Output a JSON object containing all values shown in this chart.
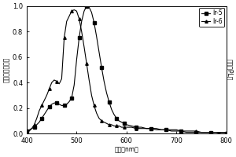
{
  "title": "",
  "xlabel": "波长（nm）",
  "ylabel_left": "归一化吸收强度",
  "ylabel_right": "归一化PL演",
  "xlim": [
    400,
    800
  ],
  "ylim": [
    0.0,
    1.0
  ],
  "xticks": [
    400,
    500,
    600,
    700,
    800
  ],
  "yticks": [
    0.0,
    0.2,
    0.4,
    0.6,
    0.8,
    1.0
  ],
  "legend": [
    "Ir-5",
    "Ir-6"
  ],
  "background_color": "#ffffff",
  "ir5_x": [
    400,
    405,
    410,
    415,
    420,
    425,
    430,
    435,
    440,
    445,
    450,
    455,
    460,
    465,
    470,
    475,
    480,
    485,
    490,
    495,
    500,
    505,
    510,
    515,
    520,
    525,
    530,
    535,
    540,
    545,
    550,
    555,
    560,
    565,
    570,
    575,
    580,
    585,
    590,
    595,
    600,
    610,
    620,
    630,
    640,
    650,
    660,
    670,
    680,
    690,
    700,
    710,
    720,
    730,
    740,
    750,
    760,
    770,
    780,
    790,
    800
  ],
  "ir5_y": [
    0.02,
    0.03,
    0.04,
    0.05,
    0.07,
    0.09,
    0.12,
    0.15,
    0.18,
    0.21,
    0.23,
    0.24,
    0.24,
    0.23,
    0.22,
    0.22,
    0.23,
    0.25,
    0.28,
    0.38,
    0.58,
    0.75,
    0.88,
    0.96,
    1.0,
    0.99,
    0.95,
    0.87,
    0.76,
    0.64,
    0.52,
    0.41,
    0.32,
    0.25,
    0.19,
    0.15,
    0.12,
    0.1,
    0.09,
    0.08,
    0.07,
    0.06,
    0.05,
    0.05,
    0.04,
    0.04,
    0.03,
    0.03,
    0.03,
    0.02,
    0.02,
    0.02,
    0.01,
    0.01,
    0.01,
    0.01,
    0.01,
    0.01,
    0.01,
    0.0,
    0.0
  ],
  "ir6_x": [
    400,
    405,
    410,
    415,
    420,
    425,
    430,
    435,
    440,
    445,
    450,
    455,
    460,
    465,
    470,
    475,
    480,
    485,
    490,
    495,
    500,
    505,
    510,
    515,
    520,
    525,
    530,
    535,
    540,
    545,
    550,
    555,
    560,
    565,
    570,
    575,
    580,
    585,
    590,
    595,
    600,
    610,
    620,
    630,
    640,
    650,
    660,
    670,
    680,
    690,
    700,
    710,
    720,
    730,
    740,
    750,
    760,
    770,
    780,
    790,
    800
  ],
  "ir6_y": [
    0.01,
    0.02,
    0.04,
    0.07,
    0.12,
    0.18,
    0.22,
    0.26,
    0.3,
    0.35,
    0.4,
    0.42,
    0.41,
    0.39,
    0.43,
    0.75,
    0.88,
    0.92,
    0.96,
    0.97,
    0.96,
    0.9,
    0.8,
    0.68,
    0.55,
    0.42,
    0.3,
    0.22,
    0.16,
    0.12,
    0.1,
    0.09,
    0.08,
    0.07,
    0.07,
    0.06,
    0.06,
    0.06,
    0.05,
    0.05,
    0.05,
    0.05,
    0.04,
    0.04,
    0.04,
    0.04,
    0.04,
    0.03,
    0.03,
    0.03,
    0.03,
    0.02,
    0.02,
    0.02,
    0.02,
    0.01,
    0.01,
    0.01,
    0.01,
    0.01,
    0.01
  ]
}
